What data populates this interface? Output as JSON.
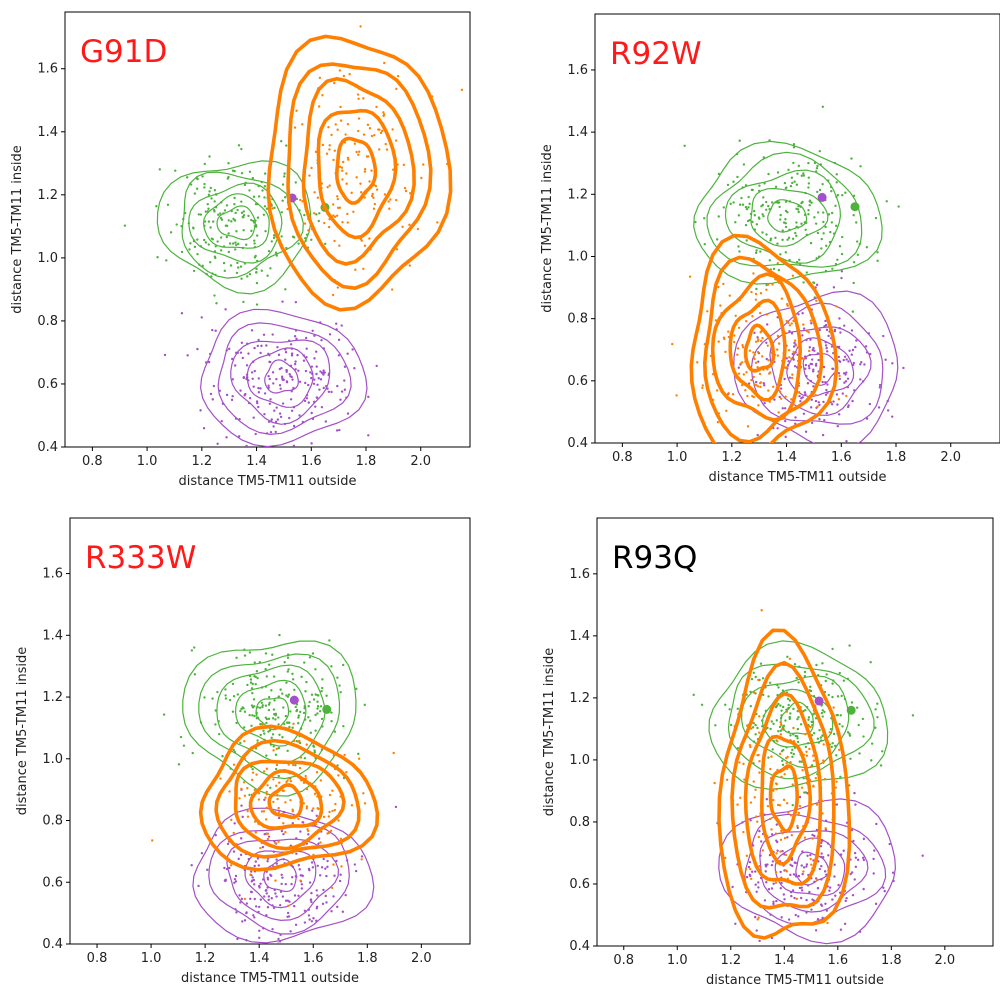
{
  "colors": {
    "green": "#4db33d",
    "purple": "#a450c8",
    "orange": "#ff8000",
    "title_red": "#ff1a1a",
    "title_black": "#000000"
  },
  "panels": [
    {
      "title": "G91D",
      "title_color": "#ff1a1a",
      "xlabel": "distance TM5-TM11 outside",
      "ylabel": "distance TM5-TM11 inside",
      "xticks": [
        "0.8",
        "1.0",
        "1.2",
        "1.4",
        "1.6",
        "1.8",
        "2.0"
      ],
      "yticks": [
        "0.4",
        "0.6",
        "0.8",
        "1.0",
        "1.2",
        "1.4",
        "1.6"
      ]
    },
    {
      "title": "R92W",
      "title_color": "#ff1a1a",
      "xlabel": "distance TM5-TM11 outside",
      "ylabel": "distance TM5-TM11 inside",
      "xticks": [
        "0.8",
        "1.0",
        "1.2",
        "1.4",
        "1.6",
        "1.8",
        "2.0"
      ],
      "yticks": [
        "0.4",
        "0.6",
        "0.8",
        "1.0",
        "1.2",
        "1.4",
        "1.6"
      ]
    },
    {
      "title": "R333W",
      "title_color": "#ff1a1a",
      "xlabel": "distance TM5-TM11 outside",
      "ylabel": "distance TM5-TM11 inside",
      "xticks": [
        "0.8",
        "1.0",
        "1.2",
        "1.4",
        "1.6",
        "1.8",
        "2.0"
      ],
      "yticks": [
        "0.4",
        "0.6",
        "0.8",
        "1.0",
        "1.2",
        "1.4",
        "1.6"
      ]
    },
    {
      "title": "R93Q",
      "title_color": "#000000",
      "xlabel": "distance TM5-TM11 outside",
      "ylabel": "distance TM5-TM11 inside",
      "xticks": [
        "0.8",
        "1.0",
        "1.2",
        "1.4",
        "1.6",
        "1.8",
        "2.0"
      ],
      "yticks": [
        "0.4",
        "0.6",
        "0.8",
        "1.0",
        "1.2",
        "1.4",
        "1.6"
      ]
    }
  ],
  "chart_data": [
    {
      "type": "scatter",
      "title": "G91D",
      "xlabel": "distance TM5-TM11 outside",
      "ylabel": "distance TM5-TM11 inside",
      "xlim": [
        0.7,
        2.18
      ],
      "ylim": [
        0.4,
        1.78
      ],
      "grid": false,
      "series": [
        {
          "color": "#4db33d",
          "center": [
            1.33,
            1.11
          ],
          "spread": [
            0.14,
            0.1
          ],
          "contour_levels": [
            [
              0.28,
              0.2
            ],
            [
              0.22,
              0.16
            ],
            [
              0.17,
              0.12
            ],
            [
              0.12,
              0.085
            ],
            [
              0.07,
              0.05
            ]
          ],
          "line": "thin",
          "centroid": [
            1.65,
            1.16
          ]
        },
        {
          "color": "#a450c8",
          "center": [
            1.49,
            0.62
          ],
          "spread": [
            0.14,
            0.1
          ],
          "contour_levels": [
            [
              0.3,
              0.21
            ],
            [
              0.24,
              0.17
            ],
            [
              0.18,
              0.13
            ],
            [
              0.12,
              0.09
            ],
            [
              0.06,
              0.05
            ]
          ],
          "line": "thin",
          "centroid": [
            1.53,
            1.19
          ]
        },
        {
          "color": "#ff8000",
          "center": [
            1.76,
            1.28
          ],
          "spread": [
            0.13,
            0.16
          ],
          "contour_levels": [
            [
              0.33,
              0.42
            ],
            [
              0.26,
              0.35
            ],
            [
              0.2,
              0.28
            ],
            [
              0.14,
              0.2
            ],
            [
              0.07,
              0.1
            ]
          ],
          "line": "thick"
        }
      ]
    },
    {
      "type": "scatter",
      "title": "R92W",
      "xlabel": "distance TM5-TM11 outside",
      "ylabel": "distance TM5-TM11 inside",
      "xlim": [
        0.7,
        2.18
      ],
      "ylim": [
        0.4,
        1.78
      ],
      "grid": false,
      "series": [
        {
          "color": "#4db33d",
          "center": [
            1.4,
            1.13
          ],
          "spread": [
            0.14,
            0.1
          ],
          "contour_levels": [
            [
              0.34,
              0.22
            ],
            [
              0.28,
              0.18
            ],
            [
              0.21,
              0.14
            ],
            [
              0.14,
              0.09
            ],
            [
              0.07,
              0.05
            ]
          ],
          "line": "thin",
          "centroid": [
            1.65,
            1.16
          ]
        },
        {
          "color": "#a450c8",
          "center": [
            1.52,
            0.64
          ],
          "spread": [
            0.13,
            0.1
          ],
          "contour_levels": [
            [
              0.3,
              0.24
            ],
            [
              0.24,
              0.19
            ],
            [
              0.18,
              0.14
            ],
            [
              0.12,
              0.09
            ],
            [
              0.06,
              0.05
            ]
          ],
          "line": "thin",
          "centroid": [
            1.53,
            1.19
          ]
        },
        {
          "color": "#ff8000",
          "center": [
            1.3,
            0.7
          ],
          "spread": [
            0.12,
            0.12
          ],
          "contour_levels": [
            [
              0.26,
              0.34
            ],
            [
              0.21,
              0.28
            ],
            [
              0.16,
              0.22
            ],
            [
              0.1,
              0.15
            ],
            [
              0.05,
              0.07
            ]
          ],
          "line": "thick"
        }
      ]
    },
    {
      "type": "scatter",
      "title": "R333W",
      "xlabel": "distance TM5-TM11 outside",
      "ylabel": "distance TM5-TM11 inside",
      "xlim": [
        0.7,
        2.18
      ],
      "ylim": [
        0.4,
        1.78
      ],
      "grid": false,
      "series": [
        {
          "color": "#4db33d",
          "center": [
            1.45,
            1.15
          ],
          "spread": [
            0.13,
            0.1
          ],
          "contour_levels": [
            [
              0.32,
              0.24
            ],
            [
              0.26,
              0.19
            ],
            [
              0.2,
              0.15
            ],
            [
              0.13,
              0.1
            ],
            [
              0.06,
              0.05
            ]
          ],
          "line": "thin",
          "centroid": [
            1.65,
            1.16
          ]
        },
        {
          "color": "#a450c8",
          "center": [
            1.48,
            0.62
          ],
          "spread": [
            0.13,
            0.1
          ],
          "contour_levels": [
            [
              0.33,
              0.21
            ],
            [
              0.26,
              0.17
            ],
            [
              0.2,
              0.13
            ],
            [
              0.13,
              0.09
            ],
            [
              0.06,
              0.05
            ]
          ],
          "line": "thin",
          "centroid": [
            1.53,
            1.19
          ]
        },
        {
          "color": "#ff8000",
          "center": [
            1.5,
            0.86
          ],
          "spread": [
            0.12,
            0.11
          ],
          "contour_levels": [
            [
              0.32,
              0.22
            ],
            [
              0.26,
              0.18
            ],
            [
              0.2,
              0.14
            ],
            [
              0.13,
              0.09
            ],
            [
              0.06,
              0.05
            ]
          ],
          "line": "thick"
        }
      ]
    },
    {
      "type": "scatter",
      "title": "R93Q",
      "xlabel": "distance TM5-TM11 outside",
      "ylabel": "distance TM5-TM11 inside",
      "xlim": [
        0.7,
        2.18
      ],
      "ylim": [
        0.4,
        1.78
      ],
      "grid": false,
      "series": [
        {
          "color": "#4db33d",
          "center": [
            1.45,
            1.13
          ],
          "spread": [
            0.13,
            0.1
          ],
          "contour_levels": [
            [
              0.33,
              0.23
            ],
            [
              0.27,
              0.18
            ],
            [
              0.2,
              0.14
            ],
            [
              0.13,
              0.09
            ],
            [
              0.06,
              0.05
            ]
          ],
          "line": "thin",
          "centroid": [
            1.65,
            1.16
          ]
        },
        {
          "color": "#a450c8",
          "center": [
            1.5,
            0.65
          ],
          "spread": [
            0.13,
            0.1
          ],
          "contour_levels": [
            [
              0.33,
              0.22
            ],
            [
              0.26,
              0.17
            ],
            [
              0.2,
              0.13
            ],
            [
              0.13,
              0.09
            ],
            [
              0.06,
              0.05
            ]
          ],
          "line": "thin",
          "centroid": [
            1.53,
            1.19
          ]
        },
        {
          "color": "#ff8000",
          "center": [
            1.4,
            0.88
          ],
          "spread": [
            0.1,
            0.18
          ],
          "contour_levels": [
            [
              0.24,
              0.48
            ],
            [
              0.19,
              0.39
            ],
            [
              0.14,
              0.3
            ],
            [
              0.09,
              0.2
            ],
            [
              0.05,
              0.1
            ]
          ],
          "line": "thick"
        }
      ]
    }
  ]
}
